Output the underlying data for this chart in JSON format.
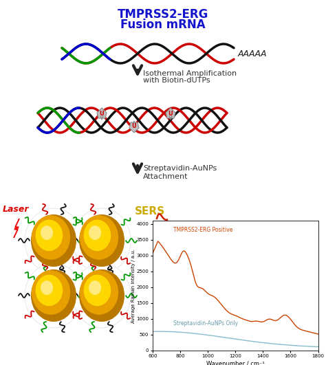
{
  "title_line1": "TMPRSS2-ERG",
  "title_line2": "Fusion mRNA",
  "title_color": "#1414cc",
  "background_color": "#ffffff",
  "arrow1_text_line1": "Isothermal Amplification",
  "arrow1_text_line2": "with Biotin-dUTPs",
  "arrow2_text_line1": "Streptavidin-AuNPs",
  "arrow2_text_line2": "Attachment",
  "laser_text": "Laser",
  "sers_text": "SERS",
  "polyA_text": "AAAAA",
  "graph_xlabel": "Wavenumber / cm⁻¹",
  "graph_ylabel": "Average Raman Intensity / a.u.",
  "graph_label1": "TMPRSS2-ERG Positive",
  "graph_label2": "Streptavidin-AuNPs Only",
  "graph_color1": "#cc4400",
  "graph_color2": "#88bbcc",
  "graph_yticks": [
    0,
    500,
    1000,
    1500,
    2000,
    2500,
    3000,
    3500,
    4000
  ],
  "graph_xticks": [
    600,
    800,
    1000,
    1200,
    1400,
    1600,
    1800
  ],
  "graph_xlim": [
    600,
    1800
  ],
  "graph_ylim": [
    0,
    4100
  ],
  "dna1_red": "#cc0000",
  "dna1_black": "#111111",
  "dna1_green": "#009900",
  "dna1_blue": "#0000cc",
  "biotin_gray": "#aaaaaa",
  "arrow_color": "#222222",
  "gold_outer": "#b87800",
  "gold_mid": "#e8a000",
  "gold_inner": "#ffd700",
  "gold_highlight": "#fff0a0"
}
